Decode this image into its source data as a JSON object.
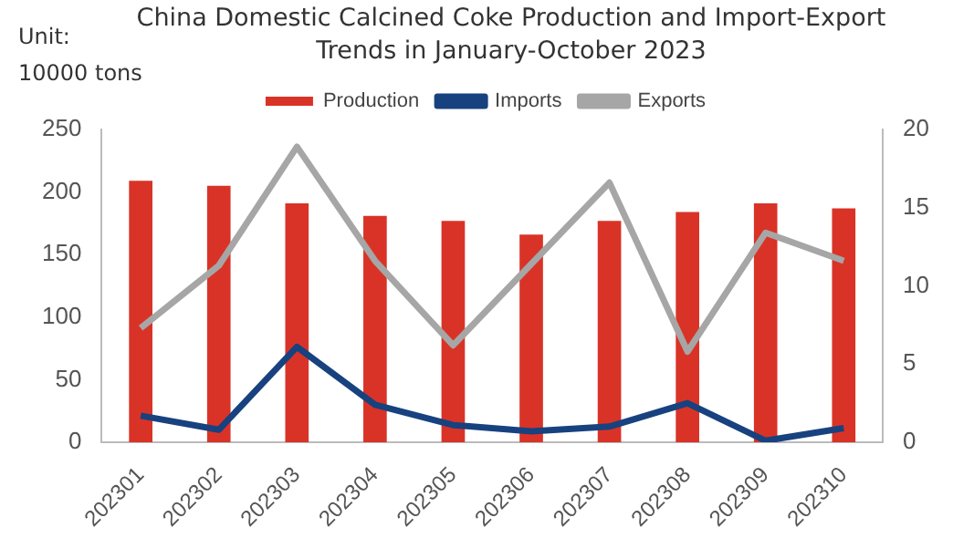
{
  "chart_data": {
    "type": "bar",
    "title": "China Domestic Calcined Coke Production and Import-Export Trends in January-October 2023",
    "ylabel": "Unit:\n10000 tons",
    "categories": [
      "202301",
      "202302",
      "202303",
      "202304",
      "202305",
      "202306",
      "202307",
      "202308",
      "202309",
      "202310"
    ],
    "series": [
      {
        "name": "Production",
        "color": "#d93327",
        "values": [
          209,
          205,
          191,
          181,
          177,
          166,
          177,
          184,
          191,
          187
        ]
      },
      {
        "name": "Imports",
        "type": "line",
        "axis": "y2",
        "color": "#17427f",
        "values": [
          1.7,
          0.8,
          6.1,
          2.4,
          1.1,
          0.7,
          1.0,
          2.5,
          0.1,
          0.9
        ]
      },
      {
        "name": "Exports",
        "type": "line",
        "axis": "y2",
        "color": "#a6a6a6",
        "values": [
          7.3,
          11.3,
          18.9,
          11.6,
          6.2,
          11.4,
          16.6,
          5.8,
          13.4,
          11.6
        ]
      }
    ],
    "ylim": [
      0,
      250
    ],
    "yticks": [
      0,
      50,
      100,
      150,
      200,
      250
    ],
    "y2lim": [
      0,
      20
    ],
    "y2ticks": [
      0,
      5,
      10,
      15,
      20
    ],
    "grid": false,
    "legend": "top",
    "marker": "none"
  }
}
